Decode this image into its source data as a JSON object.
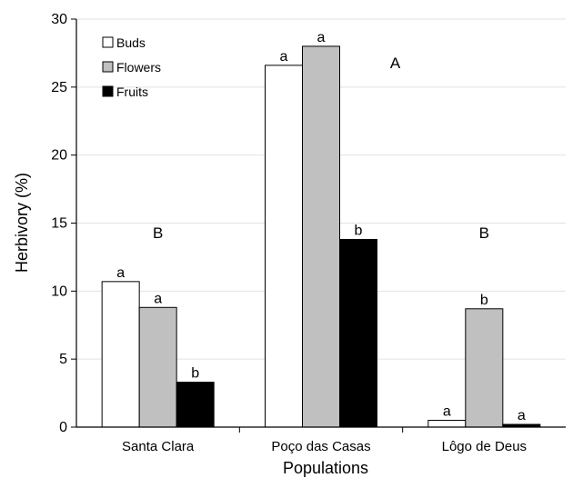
{
  "chart_data": {
    "type": "bar",
    "xlabel": "Populations",
    "ylabel": "Herbivory (%)",
    "ylim": [
      0,
      30
    ],
    "yticks": [
      "0",
      "5",
      "10",
      "15",
      "20",
      "25",
      "30"
    ],
    "grid": "horizontal",
    "legend_position": "top-left",
    "categories": [
      "Santa Clara",
      "Poço das Casas",
      "Lôgo de Deus"
    ],
    "series": [
      {
        "name": "Buds",
        "color": "#ffffff",
        "values": [
          10.7,
          26.6,
          0.5
        ],
        "labels": [
          "a",
          "a",
          "a"
        ]
      },
      {
        "name": "Flowers",
        "color": "#c0c0c0",
        "values": [
          8.8,
          28.0,
          8.7
        ],
        "labels": [
          "a",
          "a",
          "b"
        ]
      },
      {
        "name": "Fruits",
        "color": "#000000",
        "values": [
          3.3,
          13.8,
          0.2
        ],
        "labels": [
          "b",
          "b",
          "a"
        ]
      }
    ],
    "group_letters": [
      "B",
      "A",
      "B"
    ]
  }
}
